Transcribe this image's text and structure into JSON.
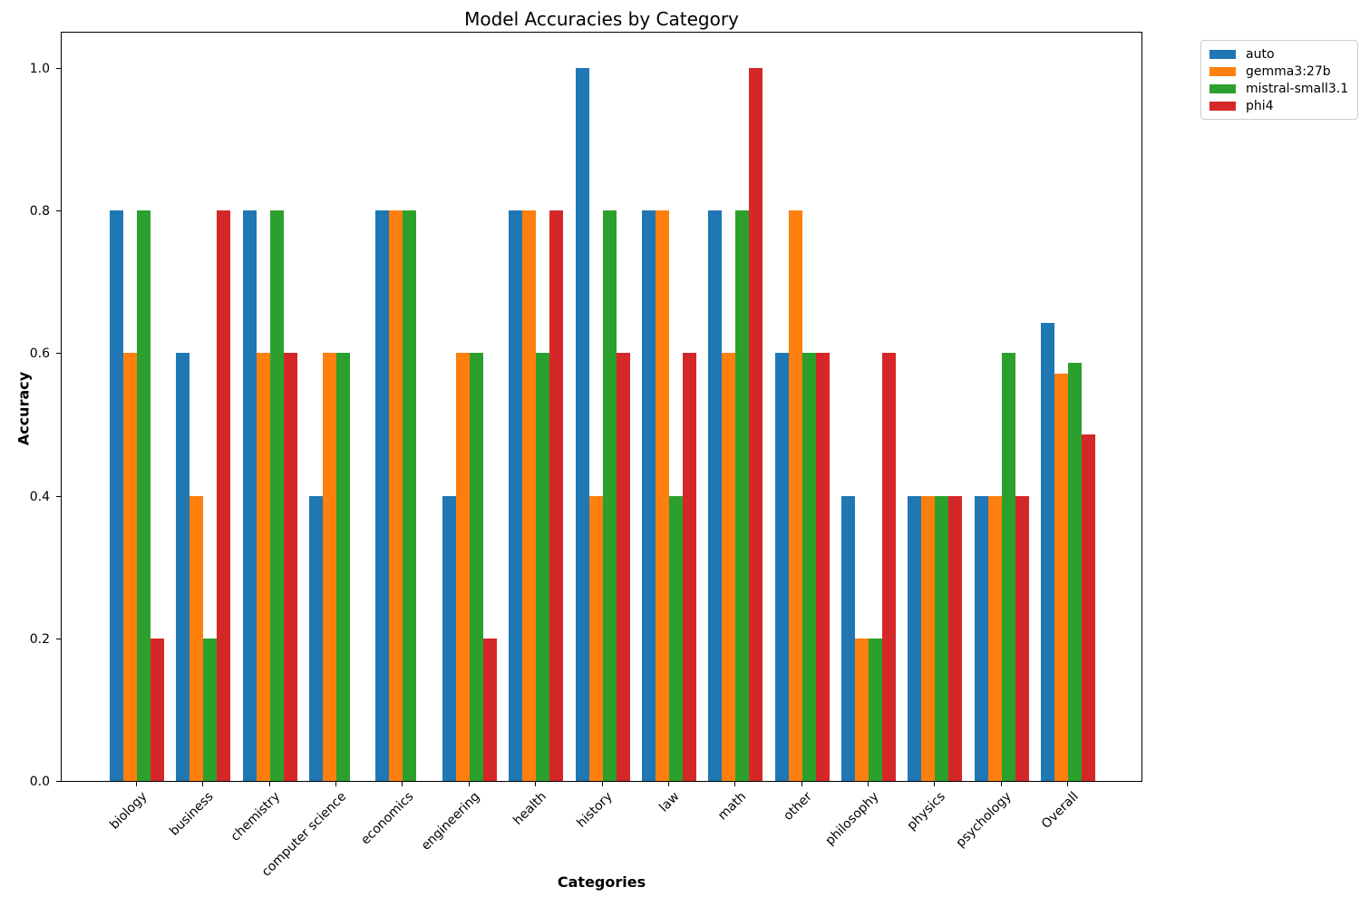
{
  "chart_data": {
    "type": "bar",
    "title": "Model Accuracies by Category",
    "xlabel": "Categories",
    "ylabel": "Accuracy",
    "categories": [
      "biology",
      "business",
      "chemistry",
      "computer science",
      "economics",
      "engineering",
      "health",
      "history",
      "law",
      "math",
      "other",
      "philosophy",
      "physics",
      "psychology",
      "Overall"
    ],
    "series": [
      {
        "name": "auto",
        "color": "#1f77b4",
        "values": [
          0.8,
          0.6,
          0.8,
          0.4,
          0.8,
          0.4,
          0.8,
          1.0,
          0.8,
          0.8,
          0.6,
          0.4,
          0.4,
          0.4,
          0.643
        ]
      },
      {
        "name": "gemma3:27b",
        "color": "#ff7f0e",
        "values": [
          0.6,
          0.4,
          0.6,
          0.6,
          0.8,
          0.6,
          0.8,
          0.4,
          0.8,
          0.6,
          0.8,
          0.2,
          0.4,
          0.4,
          0.571
        ]
      },
      {
        "name": "mistral-small3.1",
        "color": "#2ca02c",
        "values": [
          0.8,
          0.2,
          0.8,
          0.6,
          0.8,
          0.6,
          0.6,
          0.8,
          0.4,
          0.8,
          0.6,
          0.2,
          0.4,
          0.6,
          0.586
        ]
      },
      {
        "name": "phi4",
        "color": "#d62728",
        "values": [
          0.2,
          0.8,
          0.6,
          0.0,
          0.0,
          0.2,
          0.8,
          0.6,
          0.6,
          1.0,
          0.6,
          0.6,
          0.4,
          0.4,
          0.486
        ]
      }
    ],
    "yticks": [
      "0.0",
      "0.2",
      "0.4",
      "0.6",
      "0.8",
      "1.0"
    ],
    "ylim": [
      0,
      1.052
    ],
    "grid": false,
    "legend_position": "upper right, outside plot area"
  }
}
